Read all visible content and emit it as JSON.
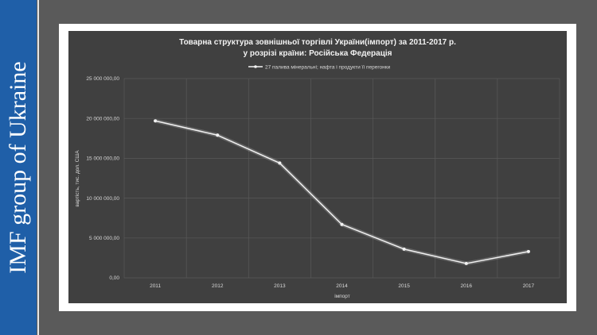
{
  "slide": {
    "brand_text": "IMF group of Ukraine"
  },
  "chart_data": {
    "type": "line",
    "title_line1": "Товарна  структура зовнішньої торгівлі України(імпорт) за  2011-2017 р.",
    "title_line2": "у розрізі країни: Російська Федерація",
    "categories": [
      "2011",
      "2012",
      "2013",
      "2014",
      "2015",
      "2016",
      "2017"
    ],
    "series": [
      {
        "name": "27 палива мінеральні; нафта і продукти її перегонки",
        "values": [
          19700000,
          17900000,
          14400000,
          6700000,
          3600000,
          1800000,
          3300000
        ]
      }
    ],
    "xlabel": "імпорт",
    "ylabel": "вартість, тис. дол. США",
    "ylim": [
      0,
      25000000
    ],
    "yticks": [
      "0,00",
      "5 000 000,00",
      "10 000 000,00",
      "15 000 000,00",
      "20 000 000,00",
      "25 000 000,00"
    ],
    "grid": true,
    "legend_position": "top",
    "colors": {
      "background": "#404040",
      "line": "#f2f2f2",
      "grid": "#595959"
    }
  }
}
